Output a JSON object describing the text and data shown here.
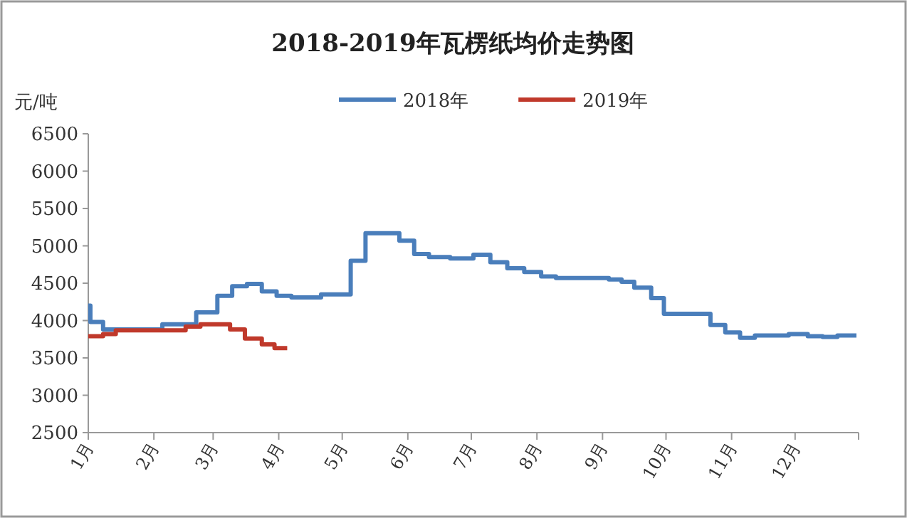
{
  "chart_data": {
    "type": "step",
    "title": "2018-2019年瓦楞纸均价走势图",
    "ylabel": "元/吨",
    "legend": "top",
    "xlim": [
      "--01-01",
      "--12-31"
    ],
    "xticks": [
      {
        "value": "--01-01",
        "label": "1月"
      },
      {
        "value": "--02-01",
        "label": "2月"
      },
      {
        "value": "--03-01",
        "label": "3月"
      },
      {
        "value": "--04-01",
        "label": "4月"
      },
      {
        "value": "--05-01",
        "label": "5月"
      },
      {
        "value": "--06-01",
        "label": "6月"
      },
      {
        "value": "--07-01",
        "label": "7月"
      },
      {
        "value": "--08-01",
        "label": "8月"
      },
      {
        "value": "--09-01",
        "label": "9月"
      },
      {
        "value": "--10-01",
        "label": "10月"
      },
      {
        "value": "--11-01",
        "label": "11月"
      },
      {
        "value": "--12-01",
        "label": "12月"
      },
      {
        "value": "--12-31",
        "label": null
      }
    ],
    "ylim": [
      2500,
      6500
    ],
    "yticks": [
      2500,
      3000,
      3500,
      4000,
      4500,
      5000,
      5500,
      6000,
      6500
    ],
    "series": [
      {
        "name": "2018年",
        "color": "#4a7ebb",
        "x": [
          "--01-01",
          "--01-02",
          "--01-08",
          "--02-05",
          "--02-21",
          "--03-03",
          "--03-10",
          "--03-17",
          "--03-24",
          "--03-31",
          "--04-07",
          "--04-21",
          "--05-05",
          "--05-12",
          "--05-28",
          "--06-04",
          "--06-11",
          "--06-21",
          "--07-02",
          "--07-10",
          "--07-18",
          "--07-26",
          "--08-03",
          "--08-10",
          "--09-04",
          "--09-10",
          "--09-16",
          "--09-24",
          "--09-30",
          "--10-22",
          "--10-29",
          "--11-05",
          "--11-12",
          "--11-28",
          "--12-07",
          "--12-14",
          "--12-21",
          "--12-30"
        ],
        "values": [
          4200,
          3980,
          3880,
          3950,
          4110,
          4330,
          4460,
          4490,
          4390,
          4330,
          4310,
          4350,
          4800,
          5170,
          5070,
          4890,
          4850,
          4830,
          4880,
          4780,
          4700,
          4650,
          4590,
          4570,
          4550,
          4520,
          4440,
          4300,
          4090,
          3940,
          3840,
          3770,
          3800,
          3820,
          3790,
          3780,
          3800,
          3800
        ]
      },
      {
        "name": "2019年",
        "color": "#c0392b",
        "x": [
          "--01-01",
          "--01-08",
          "--01-14",
          "--02-16",
          "--02-23",
          "--03-09",
          "--03-16",
          "--03-24",
          "--03-30",
          "--04-05"
        ],
        "values": [
          3790,
          3820,
          3870,
          3920,
          3950,
          3880,
          3760,
          3680,
          3630,
          3630
        ]
      }
    ]
  }
}
